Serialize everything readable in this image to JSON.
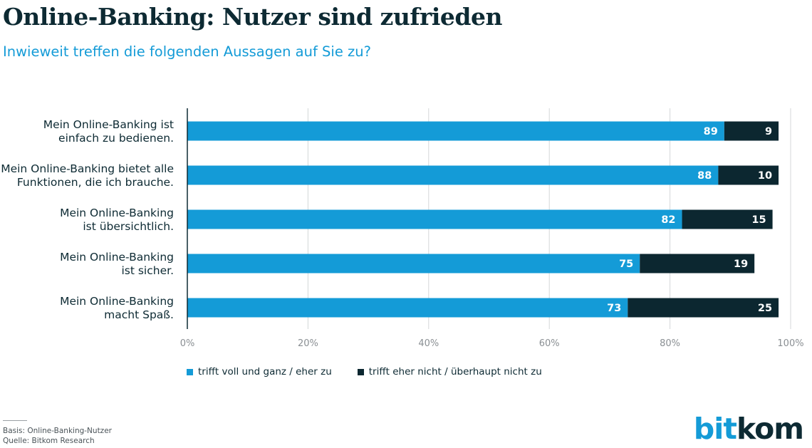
{
  "header": {
    "title": "Online-Banking: Nutzer sind zufrieden",
    "subtitle": "Inwieweit treffen die folgenden Aussagen auf Sie zu?"
  },
  "colors": {
    "agree": "#149bd7",
    "disagree": "#0c2730",
    "grid": "#d4d7d9",
    "axis": "#0d2a33"
  },
  "chart_data": {
    "type": "bar",
    "orientation": "horizontal",
    "stacked": true,
    "categories": [
      [
        "Mein Online-Banking ist",
        "einfach zu bedienen."
      ],
      [
        "Mein Online-Banking bietet alle",
        "Funktionen, die ich brauche."
      ],
      [
        "Mein Online-Banking",
        "ist übersichtlich."
      ],
      [
        "Mein Online-Banking",
        "ist sicher."
      ],
      [
        "Mein Online-Banking",
        "macht Spaß."
      ]
    ],
    "series": [
      {
        "name": "trifft voll und ganz / eher zu",
        "values": [
          89,
          88,
          82,
          75,
          73
        ],
        "color": "#149bd7"
      },
      {
        "name": "trifft eher nicht / überhaupt nicht zu",
        "values": [
          9,
          10,
          15,
          19,
          25
        ],
        "color": "#0c2730"
      }
    ],
    "xlim": [
      0,
      100
    ],
    "xticks": [
      "0%",
      "20%",
      "40%",
      "60%",
      "80%",
      "100%"
    ],
    "grid": "vertical",
    "legend": "bottom"
  },
  "legend": {
    "agree_label": "trifft voll und ganz / eher zu",
    "disagree_label": "trifft eher nicht / überhaupt nicht zu"
  },
  "footer": {
    "basis": "Basis: Online-Banking-Nutzer",
    "source": "Quelle: Bitkom Research"
  },
  "logo": {
    "part1": "bit",
    "part2": "kom"
  }
}
